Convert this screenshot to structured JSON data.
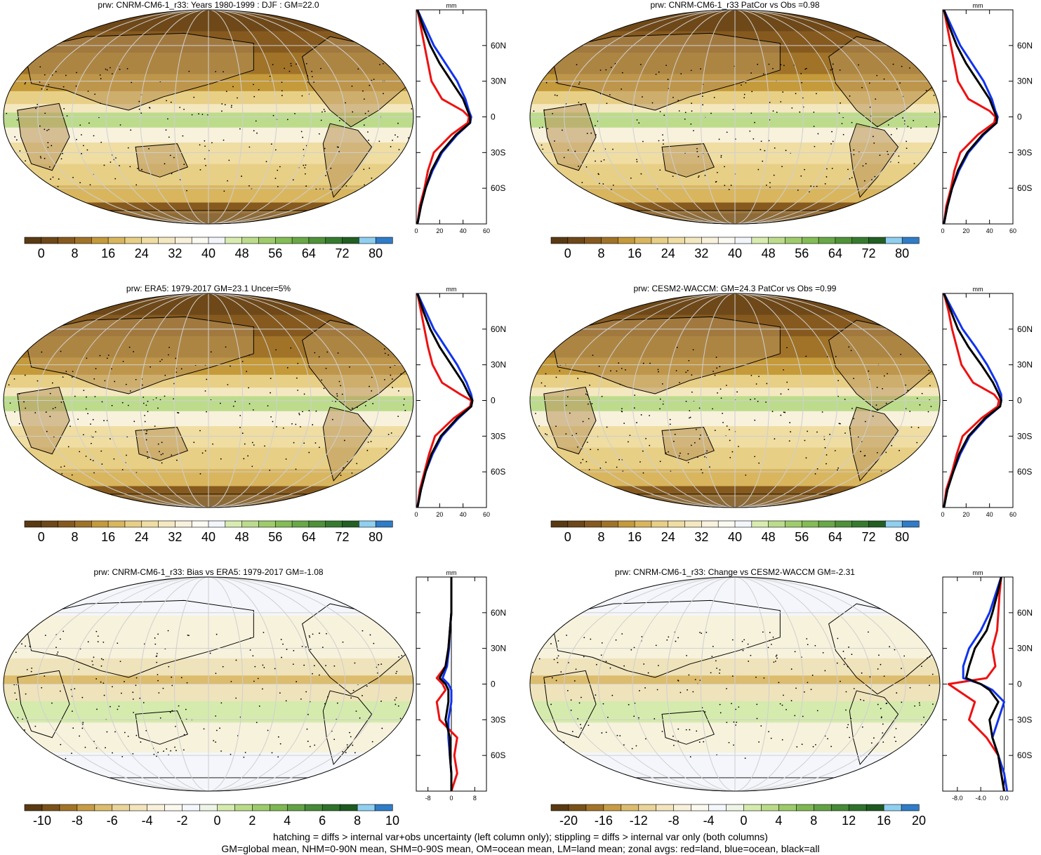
{
  "colors": {
    "abs_palette": [
      "#5a3a12",
      "#6e4818",
      "#865a1f",
      "#a07328",
      "#c59a3b",
      "#d9b65e",
      "#e8cf86",
      "#efdda2",
      "#f4e8c0",
      "#f8f1dc",
      "#fbfaf1",
      "#f2f6fb",
      "#d9ecb0",
      "#bcdc8c",
      "#9fcc6a",
      "#84bc55",
      "#69a846",
      "#4f9238",
      "#357b2e",
      "#225f22",
      "#8fcff0",
      "#2f7cc7"
    ],
    "diff_palette": [
      "#5a3a12",
      "#7a5218",
      "#a27428",
      "#c89c45",
      "#dcbc6d",
      "#ead49a",
      "#f2e4bc",
      "#f8f0da",
      "#fbf8ee",
      "#f4f8fc",
      "#eef5e6",
      "#d5ebad",
      "#b9db88",
      "#9ccb69",
      "#7fb852",
      "#62a244",
      "#468b37",
      "#2f722b",
      "#1d5a20",
      "#8fcff0",
      "#2f7cc7"
    ],
    "land": "#b8935a",
    "zonal_land": "#ee1111",
    "zonal_ocean": "#1133ee",
    "zonal_all": "#000000"
  },
  "charts": [
    {
      "title": "prw: CNRM-CM6-1_r33: Years 1980-1999 : DJF : GM=22.0",
      "palette": "abs",
      "cb_labels": [
        "0",
        "8",
        "16",
        "24",
        "32",
        "40",
        "48",
        "56",
        "64",
        "72",
        "80"
      ],
      "zonal_unit": "mm",
      "zonal_xticks": [
        "0",
        "20",
        "40",
        "60"
      ],
      "zonal_xrange": [
        0,
        60
      ],
      "lat_labels": [
        "60N",
        "30N",
        "0",
        "30S",
        "60S"
      ]
    },
    {
      "title": "prw: CNRM-CM6-1_r33 PatCor vs Obs =0.98",
      "palette": "abs",
      "cb_labels": [
        "0",
        "8",
        "16",
        "24",
        "32",
        "40",
        "48",
        "56",
        "64",
        "72",
        "80"
      ],
      "zonal_unit": "mm",
      "zonal_xticks": [
        "0",
        "20",
        "40",
        "60"
      ],
      "zonal_xrange": [
        0,
        60
      ],
      "lat_labels": [
        "60N",
        "30N",
        "0",
        "30S",
        "60S"
      ]
    },
    {
      "title": "prw: ERA5: 1979-2017 GM=23.1 Uncer=5%",
      "palette": "abs",
      "cb_labels": [
        "0",
        "8",
        "16",
        "24",
        "32",
        "40",
        "48",
        "56",
        "64",
        "72",
        "80"
      ],
      "zonal_unit": "mm",
      "zonal_xticks": [
        "0",
        "20",
        "40",
        "60"
      ],
      "zonal_xrange": [
        0,
        60
      ],
      "lat_labels": [
        "60N",
        "30N",
        "0",
        "30S",
        "60S"
      ]
    },
    {
      "title": "prw: CESM2-WACCM: GM=24.3 PatCor vs Obs =0.99",
      "palette": "abs",
      "cb_labels": [
        "0",
        "8",
        "16",
        "24",
        "32",
        "40",
        "48",
        "56",
        "64",
        "72",
        "80"
      ],
      "zonal_unit": "mm",
      "zonal_xticks": [
        "0",
        "20",
        "40",
        "60"
      ],
      "zonal_xrange": [
        0,
        60
      ],
      "lat_labels": [
        "60N",
        "30N",
        "0",
        "30S",
        "60S"
      ]
    },
    {
      "title": "prw: CNRM-CM6-1_r33: Bias vs ERA5: 1979-2017 GM=-1.08",
      "palette": "diff",
      "cb_labels": [
        "-10",
        "-8",
        "-6",
        "-4",
        "-2",
        "0",
        "2",
        "4",
        "6",
        "8",
        "10"
      ],
      "zonal_unit": "mm",
      "zonal_xticks": [
        "-8",
        "0",
        "8"
      ],
      "zonal_xrange": [
        -12,
        12
      ],
      "lat_labels": [
        "60N",
        "30N",
        "0",
        "30S",
        "60S"
      ]
    },
    {
      "title": "prw: CNRM-CM6-1_r33: Change vs CESM2-WACCM GM=-2.31",
      "palette": "diff",
      "cb_labels": [
        "-20",
        "-16",
        "-12",
        "-8",
        "-4",
        "0",
        "4",
        "8",
        "12",
        "16",
        "20"
      ],
      "zonal_unit": "mm",
      "zonal_xticks": [
        "-8.0",
        "-4.0",
        "0.0"
      ],
      "zonal_xrange": [
        -10.5,
        1.5
      ],
      "lat_labels": [
        "60N",
        "30N",
        "0",
        "30S",
        "60S"
      ]
    }
  ],
  "chart_data": [
    {
      "type": "heatmap",
      "title": "prw: CNRM-CM6-1_r33: Years 1980-1999 : DJF : GM=22.0",
      "colorbar_ticks": [
        0,
        8,
        16,
        24,
        32,
        40,
        48,
        56,
        64,
        72,
        80
      ],
      "zonal_mean": {
        "xlabel": "mm",
        "xlim": [
          0,
          60
        ],
        "lat": [
          90,
          75,
          60,
          45,
          30,
          15,
          5,
          0,
          -5,
          -15,
          -30,
          -45,
          -60,
          -75,
          -90
        ],
        "series": [
          {
            "name": "red=land",
            "values": [
              1,
              4,
              7,
              10,
              13,
              22,
              40,
              45,
              44,
              30,
              15,
              10,
              7,
              3,
              1
            ]
          },
          {
            "name": "blue=ocean",
            "values": [
              1,
              8,
              15,
              25,
              35,
              42,
              45,
              47,
              46,
              35,
              22,
              14,
              8,
              4,
              1
            ]
          },
          {
            "name": "black=all",
            "values": [
              1,
              6,
              12,
              20,
              30,
              40,
              44,
              46,
              46,
              34,
              21,
              13,
              8,
              4,
              1
            ]
          }
        ]
      }
    },
    {
      "type": "heatmap",
      "title": "prw: CNRM-CM6-1_r33 PatCor vs Obs =0.98",
      "colorbar_ticks": [
        0,
        8,
        16,
        24,
        32,
        40,
        48,
        56,
        64,
        72,
        80
      ],
      "zonal_mean": {
        "xlabel": "mm",
        "xlim": [
          0,
          60
        ],
        "lat": [
          90,
          75,
          60,
          45,
          30,
          15,
          5,
          0,
          -5,
          -15,
          -30,
          -45,
          -60,
          -75,
          -90
        ],
        "series": [
          {
            "name": "red=land",
            "values": [
              1,
              4,
              7,
              10,
              13,
              22,
              40,
              45,
              44,
              30,
              15,
              10,
              7,
              3,
              1
            ]
          },
          {
            "name": "blue=ocean",
            "values": [
              1,
              8,
              15,
              25,
              35,
              42,
              45,
              47,
              46,
              35,
              22,
              14,
              8,
              4,
              1
            ]
          },
          {
            "name": "black=all",
            "values": [
              1,
              6,
              12,
              20,
              30,
              40,
              44,
              46,
              46,
              34,
              21,
              13,
              8,
              4,
              1
            ]
          }
        ]
      }
    },
    {
      "type": "heatmap",
      "title": "prw: ERA5: 1979-2017 GM=23.1 Uncer=5%",
      "colorbar_ticks": [
        0,
        8,
        16,
        24,
        32,
        40,
        48,
        56,
        64,
        72,
        80
      ],
      "zonal_mean": {
        "xlabel": "mm",
        "xlim": [
          0,
          60
        ],
        "lat": [
          90,
          75,
          60,
          45,
          30,
          15,
          5,
          0,
          -5,
          -15,
          -30,
          -45,
          -60,
          -75,
          -90
        ],
        "series": [
          {
            "name": "red=land",
            "values": [
              1,
              4,
              7,
              10,
              14,
              22,
              38,
              47,
              46,
              32,
              16,
              11,
              7,
              3,
              1
            ]
          },
          {
            "name": "blue=ocean",
            "values": [
              1,
              8,
              15,
              25,
              35,
              43,
              47,
              48,
              47,
              36,
              22,
              14,
              8,
              4,
              1
            ]
          },
          {
            "name": "black=all",
            "values": [
              1,
              6,
              12,
              20,
              30,
              40,
              45,
              48,
              47,
              35,
              21,
              13,
              8,
              4,
              1
            ]
          }
        ]
      }
    },
    {
      "type": "heatmap",
      "title": "prw: CESM2-WACCM: GM=24.3 PatCor vs Obs =0.99",
      "colorbar_ticks": [
        0,
        8,
        16,
        24,
        32,
        40,
        48,
        56,
        64,
        72,
        80
      ],
      "zonal_mean": {
        "xlabel": "mm",
        "xlim": [
          0,
          60
        ],
        "lat": [
          90,
          75,
          60,
          45,
          30,
          15,
          5,
          0,
          -5,
          -15,
          -30,
          -45,
          -60,
          -75,
          -90
        ],
        "series": [
          {
            "name": "red=land",
            "values": [
              1,
              5,
              8,
              12,
              16,
              26,
              44,
              48,
              47,
              33,
              17,
              12,
              8,
              3,
              1
            ]
          },
          {
            "name": "blue=ocean",
            "values": [
              1,
              9,
              17,
              28,
              38,
              46,
              50,
              50,
              49,
              37,
              23,
              15,
              9,
              4,
              1
            ]
          },
          {
            "name": "black=all",
            "values": [
              1,
              7,
              13,
              22,
              33,
              43,
              48,
              50,
              49,
              36,
              22,
              14,
              9,
              4,
              1
            ]
          }
        ]
      }
    },
    {
      "type": "heatmap",
      "title": "prw: CNRM-CM6-1_r33: Bias vs ERA5: 1979-2017 GM=-1.08",
      "colorbar_ticks": [
        -10,
        -8,
        -6,
        -4,
        -2,
        0,
        2,
        4,
        6,
        8,
        10
      ],
      "zonal_mean": {
        "xlabel": "mm",
        "xlim": [
          -12,
          12
        ],
        "lat": [
          90,
          75,
          60,
          45,
          30,
          15,
          5,
          0,
          -5,
          -15,
          -30,
          -45,
          -60,
          -75,
          -90
        ],
        "series": [
          {
            "name": "red=land",
            "values": [
              0,
              0,
              0,
              -0.5,
              -1,
              -2,
              -5,
              -3,
              -2,
              -5,
              -4,
              2,
              1,
              2,
              0
            ]
          },
          {
            "name": "blue=ocean",
            "values": [
              0,
              0,
              0,
              -0.5,
              -0.8,
              -1.5,
              -3,
              -1,
              0,
              0,
              -1,
              -1,
              -0.5,
              0,
              0
            ]
          },
          {
            "name": "black=all",
            "values": [
              0,
              0,
              0,
              -0.5,
              -1,
              -2,
              -4,
              -2,
              -1,
              -1,
              -2,
              -0.5,
              -0.5,
              0,
              0
            ]
          }
        ]
      }
    },
    {
      "type": "heatmap",
      "title": "prw: CNRM-CM6-1_r33: Change vs CESM2-WACCM GM=-2.31",
      "colorbar_ticks": [
        -20,
        -16,
        -12,
        -8,
        -4,
        0,
        4,
        8,
        12,
        16,
        20
      ],
      "zonal_mean": {
        "xlabel": "mm",
        "xlim": [
          -10.5,
          1.5
        ],
        "lat": [
          90,
          75,
          60,
          45,
          30,
          15,
          5,
          0,
          -5,
          -15,
          -30,
          -45,
          -60,
          -75,
          -90
        ],
        "series": [
          {
            "name": "red=land",
            "values": [
              -0.5,
              -0.8,
              -1,
              -1.2,
              -2,
              -1.5,
              -3,
              -9.5,
              -8,
              -5,
              -6,
              -3,
              -1,
              -0.5,
              0
            ]
          },
          {
            "name": "blue=ocean",
            "values": [
              -0.5,
              -1.5,
              -2.5,
              -4,
              -6,
              -7,
              -7,
              -4,
              -2,
              0,
              -1,
              -2,
              -1,
              0,
              0.5
            ]
          },
          {
            "name": "black=all",
            "values": [
              -0.5,
              -1.2,
              -2,
              -3,
              -5,
              -6,
              -6.5,
              -4,
              -2.5,
              -1,
              -2.5,
              -2,
              -1,
              -0.5,
              0
            ]
          }
        ]
      }
    }
  ],
  "footer": {
    "line1": "hatching = diffs > internal var+obs uncertainty (left column only); stippling = diffs > internal var only (both columns)",
    "line2": "GM=global mean, NHM=0-90N mean, SHM=0-90S mean, OM=ocean mean, LM=land mean; zonal avgs: red=land, blue=ocean, black=all"
  }
}
